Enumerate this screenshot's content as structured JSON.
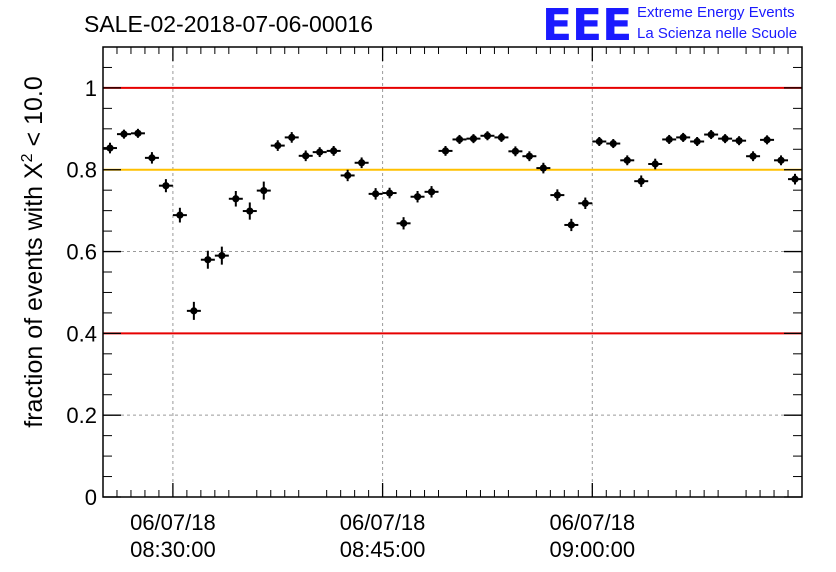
{
  "logo": {
    "mark": "EEE",
    "line1": "Extreme Energy Events",
    "line2": "La Scienza nelle Scuole",
    "color": "#1a1aff"
  },
  "chart_data": {
    "type": "scatter",
    "title": "SALE-02-2018-07-06-00016",
    "ylabel_prefix": "fraction of events with X",
    "ylabel_superscript": "2",
    "ylabel_suffix": " < 10.0",
    "xlim": [
      "2018-07-06 08:25:00",
      "2018-07-06 09:15:00"
    ],
    "ylim": [
      0,
      1.1
    ],
    "yticks": [
      "0",
      "0.2",
      "0.4",
      "0.6",
      "0.8",
      "1"
    ],
    "xticks": [
      {
        "date": "06/07/18",
        "time": "08:30:00",
        "t": "2018-07-06 08:30:00"
      },
      {
        "date": "06/07/18",
        "time": "08:45:00",
        "t": "2018-07-06 08:45:00"
      },
      {
        "date": "06/07/18",
        "time": "09:00:00",
        "t": "2018-07-06 09:00:00"
      }
    ],
    "grid": true,
    "reference_lines": [
      {
        "y": 1.0,
        "color": "#e60000"
      },
      {
        "y": 0.8,
        "color": "#ffc000"
      },
      {
        "y": 0.4,
        "color": "#e60000"
      }
    ],
    "x_error_half_width_min": 0.5,
    "series": [
      {
        "color": "#000000",
        "x": [
          "08:25:30",
          "08:26:30",
          "08:27:30",
          "08:28:30",
          "08:29:30",
          "08:30:30",
          "08:31:30",
          "08:32:30",
          "08:33:30",
          "08:34:30",
          "08:35:30",
          "08:36:30",
          "08:37:30",
          "08:38:30",
          "08:39:30",
          "08:40:30",
          "08:41:30",
          "08:42:30",
          "08:43:30",
          "08:44:30",
          "08:45:30",
          "08:46:30",
          "08:47:30",
          "08:48:30",
          "08:49:30",
          "08:50:30",
          "08:51:30",
          "08:52:30",
          "08:53:30",
          "08:54:30",
          "08:55:30",
          "08:56:30",
          "08:57:30",
          "08:58:30",
          "08:59:30",
          "09:00:30",
          "09:01:30",
          "09:02:30",
          "09:03:30",
          "09:04:30",
          "09:05:30",
          "09:06:30",
          "09:07:30",
          "09:08:30",
          "09:09:30",
          "09:10:30",
          "09:11:30",
          "09:12:30",
          "09:13:30",
          "09:14:30"
        ],
        "y": [
          0.853,
          0.887,
          0.889,
          0.829,
          0.761,
          0.689,
          0.455,
          0.58,
          0.59,
          0.729,
          0.699,
          0.749,
          0.859,
          0.879,
          0.834,
          0.843,
          0.846,
          0.786,
          0.817,
          0.741,
          0.743,
          0.669,
          0.734,
          0.746,
          0.846,
          0.874,
          0.876,
          0.883,
          0.879,
          0.845,
          0.833,
          0.804,
          0.738,
          0.665,
          0.718,
          0.869,
          0.864,
          0.823,
          0.772,
          0.814,
          0.874,
          0.879,
          0.869,
          0.886,
          0.876,
          0.871,
          0.833,
          0.873,
          0.823,
          0.777
        ],
        "yerr": [
          0.013,
          0.011,
          0.011,
          0.014,
          0.016,
          0.018,
          0.022,
          0.022,
          0.022,
          0.019,
          0.021,
          0.022,
          0.013,
          0.013,
          0.013,
          0.012,
          0.012,
          0.014,
          0.013,
          0.014,
          0.013,
          0.015,
          0.014,
          0.014,
          0.012,
          0.011,
          0.011,
          0.011,
          0.011,
          0.012,
          0.012,
          0.013,
          0.014,
          0.015,
          0.014,
          0.011,
          0.011,
          0.012,
          0.014,
          0.013,
          0.011,
          0.011,
          0.011,
          0.011,
          0.011,
          0.011,
          0.012,
          0.011,
          0.012,
          0.013
        ]
      }
    ]
  }
}
